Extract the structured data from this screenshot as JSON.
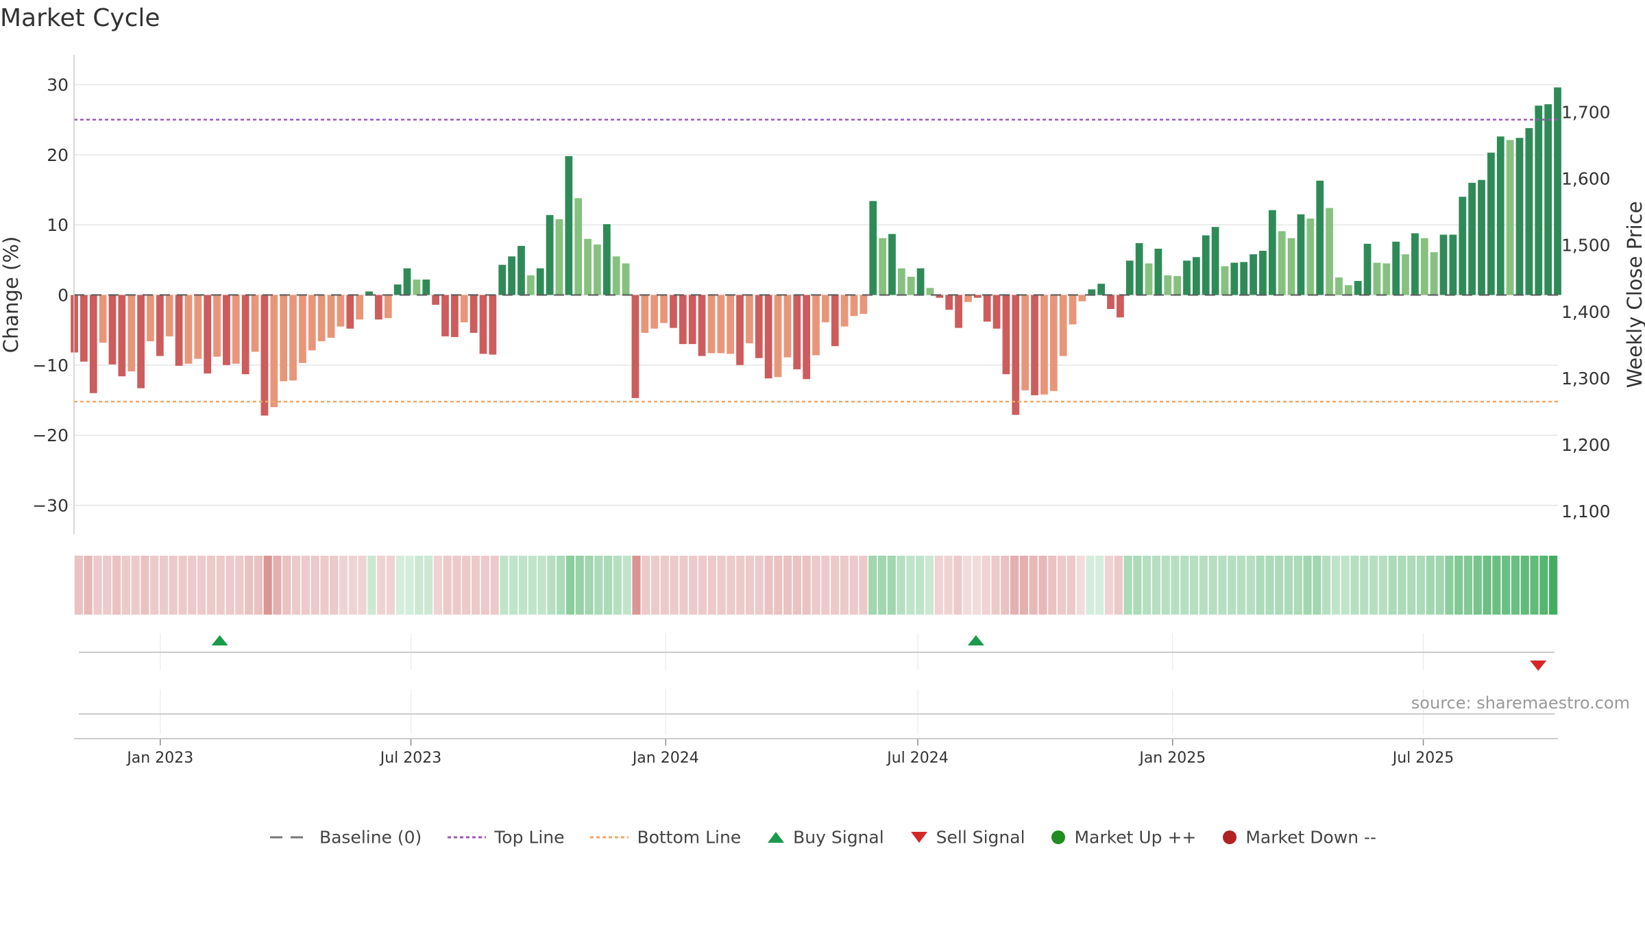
{
  "title": "Market Cycle",
  "source": "source: sharemaestro.com",
  "colors": {
    "strong_up": "#2e8b57",
    "weak_up": "#86c17f",
    "strong_down": "#cd5c5c",
    "weak_down": "#e8967a",
    "top_line": "#9b59b6",
    "bottom_line": "#f0a868",
    "buy": "#1a9a4a",
    "sell": "#d62728",
    "market_up": "#228b22",
    "market_down": "#b22222",
    "grid": "#e6e6e6"
  },
  "legend": [
    {
      "key": "baseline",
      "label": "Baseline (0)",
      "icon": "dash-line-icon"
    },
    {
      "key": "top",
      "label": "Top Line",
      "icon": "dotted-line-icon"
    },
    {
      "key": "bottom",
      "label": "Bottom Line",
      "icon": "dotted-line-icon"
    },
    {
      "key": "buy",
      "label": "Buy Signal",
      "icon": "triangle-up-icon"
    },
    {
      "key": "sell",
      "label": "Sell Signal",
      "icon": "triangle-down-icon"
    },
    {
      "key": "up",
      "label": "Market Up ++",
      "icon": "circle-icon"
    },
    {
      "key": "down",
      "label": "Market Down --",
      "icon": "circle-icon"
    }
  ],
  "chart_data": {
    "type": "bar",
    "ylabel": "Change (%)",
    "y2label": "Weekly Close Price",
    "ylim": [
      -32,
      32
    ],
    "y_ticks": [
      30,
      20,
      10,
      0,
      -10,
      -20,
      -30
    ],
    "y_tick_labels": [
      "30",
      "20",
      "10",
      "0",
      "−10",
      "−20",
      "−30"
    ],
    "y2lim": [
      1087.5,
      1762.5
    ],
    "y2_ticks": [
      1700,
      1600,
      1500,
      1400,
      1300,
      1200,
      1100
    ],
    "y2_tick_labels": [
      "1,700",
      "1,600",
      "1,500",
      "1,400",
      "1,300",
      "1,200",
      "1,100"
    ],
    "top_line": 25,
    "bottom_line": -15.2,
    "x_start": "2022-10-31",
    "x_end": "2025-10-06",
    "x_ticks": [
      "2023-01-01",
      "2023-07-01",
      "2024-01-01",
      "2024-07-01",
      "2025-01-01",
      "2025-07-01"
    ],
    "x_tick_labels": [
      "Jan 2023",
      "Jul 2023",
      "Jan 2024",
      "Jul 2024",
      "Jan 2025",
      "Jul 2025"
    ],
    "grid": true,
    "legend_position": "bottom",
    "values": [
      -8.2,
      -9.5,
      -14,
      -6.8,
      -9.9,
      -11.6,
      -10.9,
      -13.3,
      -6.6,
      -8.7,
      -5.9,
      -10.1,
      -9.8,
      -9.1,
      -11.2,
      -8.8,
      -10,
      -9.8,
      -11.3,
      -8.1,
      -17.2,
      -16,
      -12.3,
      -12.2,
      -9.7,
      -7.9,
      -6.6,
      -6.1,
      -4.5,
      -4.8,
      -3.5,
      0.5,
      -3.5,
      -3.3,
      1.5,
      3.8,
      2.2,
      2.2,
      -1.4,
      -5.9,
      -6,
      -3.9,
      -5.4,
      -8.4,
      -8.5,
      4.3,
      5.5,
      7,
      2.8,
      3.8,
      11.4,
      10.8,
      19.8,
      13.8,
      8,
      7.2,
      10.1,
      5.5,
      4.5,
      -14.7,
      -5.4,
      -4.8,
      -4,
      -4.7,
      -7,
      -7,
      -8.7,
      -8.3,
      -8.3,
      -8.4,
      -10,
      -6.9,
      -9,
      -11.9,
      -11.7,
      -8.9,
      -10.6,
      -12,
      -8.6,
      -3.9,
      -7.3,
      -4.5,
      -3,
      -2.7,
      13.4,
      8.1,
      8.7,
      3.8,
      2.6,
      3.8,
      1,
      -0.4,
      -2.1,
      -4.7,
      -1,
      -0.4,
      -3.8,
      -4.8,
      -11.3,
      -17.1,
      -13.6,
      -14.3,
      -14.2,
      -13.7,
      -8.7,
      -4.2,
      -0.9,
      0.8,
      1.6,
      -2,
      -3.2,
      4.9,
      7.4,
      4.5,
      6.6,
      2.8,
      2.7,
      4.9,
      5.4,
      8.5,
      9.7,
      4.1,
      4.6,
      4.7,
      5.8,
      6.3,
      12.1,
      9.1,
      8.1,
      11.5,
      10.9,
      16.3,
      12.4,
      2.5,
      1.4,
      2,
      7.3,
      4.6,
      4.5,
      7.6,
      5.8,
      8.8,
      8.1,
      6.1,
      8.6,
      8.6,
      14,
      16,
      16.4,
      20.3,
      22.6,
      22.1,
      22.4,
      23.8,
      27,
      27.2,
      29.6
    ],
    "strength": [
      "s",
      "s",
      "s",
      "w",
      "s",
      "s",
      "w",
      "s",
      "w",
      "s",
      "w",
      "s",
      "w",
      "w",
      "s",
      "w",
      "s",
      "w",
      "s",
      "w",
      "s",
      "w",
      "w",
      "w",
      "w",
      "w",
      "w",
      "w",
      "w",
      "s",
      "w",
      "s",
      "s",
      "w",
      "s",
      "s",
      "w",
      "s",
      "s",
      "s",
      "s",
      "w",
      "s",
      "s",
      "s",
      "s",
      "s",
      "s",
      "w",
      "s",
      "s",
      "w",
      "s",
      "w",
      "w",
      "w",
      "s",
      "w",
      "w",
      "s",
      "w",
      "w",
      "w",
      "s",
      "s",
      "s",
      "s",
      "w",
      "w",
      "w",
      "s",
      "w",
      "s",
      "s",
      "w",
      "w",
      "s",
      "s",
      "w",
      "w",
      "s",
      "w",
      "w",
      "w",
      "s",
      "w",
      "s",
      "w",
      "w",
      "s",
      "w",
      "s",
      "s",
      "s",
      "w",
      "s",
      "s",
      "s",
      "s",
      "s",
      "w",
      "s",
      "w",
      "w",
      "w",
      "w",
      "w",
      "s",
      "s",
      "s",
      "s",
      "s",
      "s",
      "w",
      "s",
      "w",
      "w",
      "s",
      "s",
      "s",
      "s",
      "w",
      "s",
      "s",
      "s",
      "s",
      "s",
      "w",
      "w",
      "s",
      "w",
      "s",
      "w",
      "w",
      "w",
      "s",
      "s",
      "w",
      "w",
      "s",
      "w",
      "s",
      "w",
      "w",
      "s",
      "s",
      "s",
      "s",
      "s",
      "s",
      "s",
      "w",
      "s",
      "s",
      "s",
      "s",
      "s"
    ],
    "heat": [
      0.35,
      0.4,
      0.3,
      0.3,
      0.35,
      0.3,
      0.3,
      0.35,
      0.3,
      0.3,
      0.3,
      0.3,
      0.3,
      0.3,
      0.3,
      0.3,
      0.3,
      0.3,
      0.35,
      0.35,
      0.6,
      0.45,
      0.35,
      0.3,
      0.3,
      0.3,
      0.3,
      0.3,
      0.25,
      0.25,
      0.25,
      0.25,
      0.25,
      0.25,
      0.2,
      0.2,
      0.25,
      0.25,
      0.25,
      0.3,
      0.3,
      0.3,
      0.3,
      0.3,
      0.3,
      0.3,
      0.3,
      0.3,
      0.3,
      0.3,
      0.35,
      0.4,
      0.55,
      0.5,
      0.45,
      0.4,
      0.4,
      0.35,
      0.3,
      0.6,
      0.3,
      0.3,
      0.3,
      0.3,
      0.3,
      0.3,
      0.3,
      0.3,
      0.3,
      0.3,
      0.3,
      0.3,
      0.3,
      0.35,
      0.35,
      0.35,
      0.35,
      0.35,
      0.3,
      0.3,
      0.3,
      0.3,
      0.3,
      0.3,
      0.45,
      0.45,
      0.45,
      0.35,
      0.3,
      0.3,
      0.25,
      0.25,
      0.25,
      0.3,
      0.2,
      0.2,
      0.25,
      0.3,
      0.35,
      0.45,
      0.45,
      0.4,
      0.4,
      0.35,
      0.3,
      0.3,
      0.2,
      0.2,
      0.2,
      0.25,
      0.3,
      0.4,
      0.4,
      0.35,
      0.35,
      0.35,
      0.35,
      0.35,
      0.35,
      0.35,
      0.35,
      0.35,
      0.35,
      0.35,
      0.35,
      0.4,
      0.4,
      0.4,
      0.4,
      0.4,
      0.45,
      0.45,
      0.35,
      0.3,
      0.3,
      0.35,
      0.35,
      0.35,
      0.35,
      0.4,
      0.4,
      0.4,
      0.4,
      0.45,
      0.45,
      0.55,
      0.6,
      0.6,
      0.65,
      0.7,
      0.7,
      0.7,
      0.7,
      0.75,
      0.75,
      0.8,
      0.9
    ],
    "buy_signals": [
      "2023-02-13",
      "2024-08-12"
    ],
    "sell_signals": [
      "2025-09-22"
    ]
  }
}
